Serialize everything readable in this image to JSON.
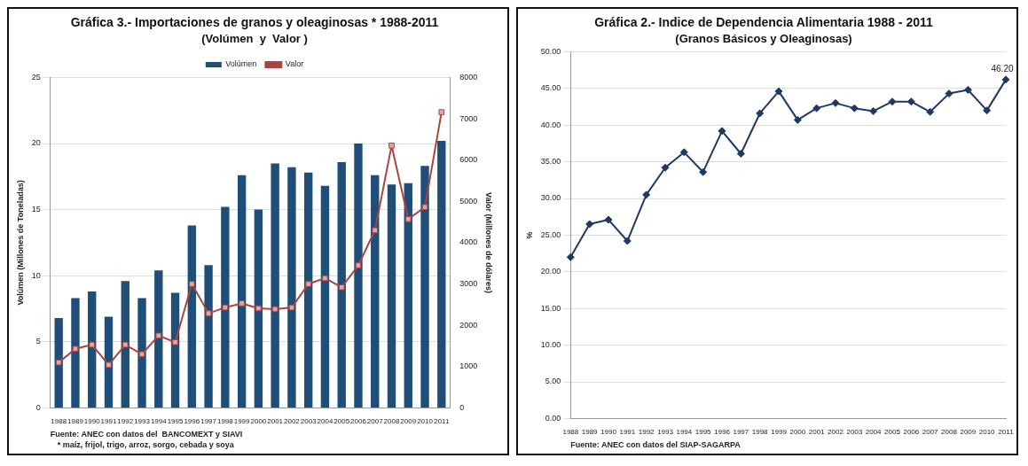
{
  "chart_data": [
    {
      "type": "bar",
      "title": "Gráfica 3.- Importaciones de granos y oleaginosas * 1988-2011",
      "subtitle": "(Volúmen  y  Valor )",
      "ylabel": "Volúmen (Millones de Toneladas)",
      "y2label": "Valor (Millones de dólares)",
      "categories": [
        "1988",
        "1989",
        "1990",
        "1991",
        "1992",
        "1993",
        "1994",
        "1995",
        "1996",
        "1997",
        "1998",
        "1999",
        "2000",
        "2001",
        "2002",
        "2003",
        "2004",
        "2005",
        "2006",
        "2007",
        "2008",
        "2009",
        "2010",
        "2011"
      ],
      "series": [
        {
          "name": "Volúmen",
          "type": "bar",
          "color": "#1f4e79",
          "values": [
            6.8,
            8.3,
            8.8,
            6.9,
            9.6,
            8.3,
            10.4,
            8.7,
            13.8,
            10.8,
            15.2,
            17.6,
            15.0,
            18.5,
            18.2,
            17.8,
            16.8,
            18.6,
            20.0,
            17.6,
            16.9,
            17.0,
            18.3,
            20.2
          ]
        },
        {
          "name": "Valor",
          "type": "line",
          "axis": "y2",
          "color": "#a9443f",
          "values": [
            1100,
            1430,
            1530,
            1040,
            1530,
            1300,
            1750,
            1590,
            3000,
            2290,
            2430,
            2530,
            2410,
            2390,
            2430,
            3000,
            3140,
            2920,
            3450,
            4300,
            6350,
            4570,
            4860,
            7160
          ]
        }
      ],
      "ylim": [
        0,
        25
      ],
      "yticks": [
        0,
        5,
        10,
        15,
        20,
        25
      ],
      "y2lim": [
        0,
        8000
      ],
      "y2ticks": [
        0,
        1000,
        2000,
        3000,
        4000,
        5000,
        6000,
        7000,
        8000
      ],
      "grid": "y",
      "legend": "top",
      "marker": "square",
      "line_style": "solid",
      "annotations": [
        "Fuente: ANEC con datos del  BANCOMEXT y SIAVI",
        "* maíz, frijol, trigo, arroz, sorgo, cebada y soya"
      ]
    },
    {
      "type": "line",
      "title": "Gráfica 2.- Indice de Dependencia Alimentaria 1988 - 2011",
      "subtitle": "(Granos Básicos y Oleaginosas)",
      "ylabel": "%",
      "categories": [
        "1988",
        "1989",
        "1990",
        "1991",
        "1992",
        "1993",
        "1994",
        "1995",
        "1996",
        "1997",
        "1998",
        "1999",
        "2000",
        "2001",
        "2002",
        "2003",
        "2004",
        "2005",
        "2006",
        "2007",
        "2008",
        "2009",
        "2010",
        "2011"
      ],
      "series": [
        {
          "color": "#1f3864",
          "values": [
            22.0,
            26.5,
            27.1,
            24.2,
            30.5,
            34.2,
            36.3,
            33.6,
            39.2,
            36.1,
            41.6,
            44.6,
            40.7,
            42.3,
            43.0,
            42.3,
            41.9,
            43.2,
            43.2,
            41.8,
            44.3,
            44.8,
            42.0,
            46.2
          ],
          "value_labels": [
            null,
            null,
            null,
            null,
            null,
            null,
            null,
            null,
            null,
            null,
            null,
            null,
            null,
            null,
            null,
            null,
            null,
            null,
            null,
            null,
            null,
            null,
            null,
            "46.20"
          ]
        }
      ],
      "ylim": [
        0,
        50
      ],
      "yticks": [
        {
          "value": 0,
          "label": "0.00"
        },
        {
          "value": 5,
          "label": "5.00"
        },
        {
          "value": 10,
          "label": "10.00"
        },
        {
          "value": 15,
          "label": "15.00"
        },
        {
          "value": 20,
          "label": "20.00"
        },
        {
          "value": 25,
          "label": "25.00"
        },
        {
          "value": 30,
          "label": "30.00"
        },
        {
          "value": 35,
          "label": "35.00"
        },
        {
          "value": 40,
          "label": "40.00"
        },
        {
          "value": 45,
          "label": "45.00"
        },
        {
          "value": 50,
          "label": "50.00"
        }
      ],
      "grid": "y",
      "marker": "diamond",
      "line_style": "solid",
      "annotations": [
        "Fuente: ANEC con datos del SIAP-SAGARPA"
      ]
    }
  ]
}
